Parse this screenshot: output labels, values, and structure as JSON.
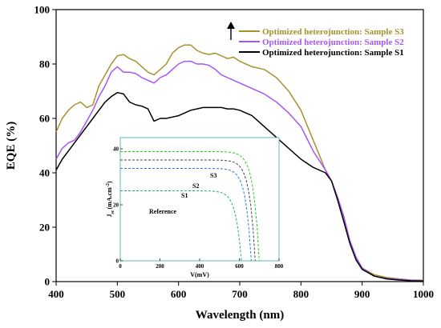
{
  "chart_data": {
    "type": "line",
    "title": "",
    "xlabel": "Wavelength (nm)",
    "ylabel": "EQE (%)",
    "xlim": [
      400,
      1000
    ],
    "ylim": [
      0,
      100
    ],
    "xticks": [
      400,
      500,
      600,
      700,
      800,
      900,
      1000
    ],
    "yticks": [
      0,
      20,
      40,
      60,
      80,
      100
    ],
    "grid": false,
    "legend_position": "top-right",
    "series": [
      {
        "name": "Optimized heterojunction: Sample S3",
        "color": "#a6922b",
        "x": [
          400,
          410,
          420,
          430,
          440,
          450,
          460,
          470,
          480,
          490,
          500,
          510,
          520,
          530,
          540,
          550,
          560,
          570,
          580,
          590,
          600,
          610,
          620,
          630,
          640,
          650,
          660,
          670,
          680,
          690,
          700,
          720,
          740,
          760,
          780,
          800,
          820,
          840,
          850,
          860,
          870,
          880,
          890,
          900,
          920,
          940,
          960,
          980,
          1000
        ],
        "y": [
          55,
          60,
          63,
          65,
          66,
          64,
          65,
          72,
          76,
          80,
          83,
          83.5,
          82,
          81,
          79,
          77,
          76,
          78,
          80,
          84,
          86,
          87,
          87,
          85,
          84,
          83.5,
          84,
          83,
          82,
          82.5,
          81,
          79,
          78,
          75,
          70,
          63,
          52,
          41,
          37,
          30,
          23,
          15,
          9,
          5,
          2.5,
          1.5,
          1,
          0.6,
          0.5
        ]
      },
      {
        "name": "Optimized heterojunction: Sample S2",
        "color": "#a855f7",
        "x": [
          400,
          410,
          420,
          430,
          440,
          450,
          460,
          470,
          480,
          490,
          500,
          510,
          520,
          530,
          540,
          550,
          560,
          570,
          580,
          590,
          600,
          610,
          620,
          630,
          640,
          650,
          660,
          670,
          680,
          690,
          700,
          720,
          740,
          760,
          780,
          800,
          820,
          840,
          850,
          860,
          870,
          880,
          890,
          900,
          920,
          940,
          960,
          980,
          1000
        ],
        "y": [
          45,
          49,
          51,
          52,
          55,
          59,
          63,
          68,
          72,
          77,
          79,
          77,
          77,
          76.5,
          75,
          74,
          73,
          75,
          76,
          78,
          80,
          81,
          81,
          80,
          80,
          79.5,
          78,
          76,
          75,
          74,
          73,
          71,
          69,
          66,
          62,
          57,
          48,
          41,
          37,
          31,
          24,
          15,
          9,
          5,
          2,
          1.2,
          0.8,
          0.5,
          0.3
        ]
      },
      {
        "name": "Optimized heterojunction: Sample S1",
        "color": "#000000",
        "x": [
          400,
          410,
          420,
          430,
          440,
          450,
          460,
          470,
          480,
          490,
          500,
          510,
          520,
          530,
          540,
          550,
          560,
          570,
          580,
          590,
          600,
          610,
          620,
          630,
          640,
          650,
          660,
          670,
          680,
          690,
          700,
          720,
          740,
          760,
          780,
          800,
          820,
          840,
          850,
          860,
          870,
          880,
          890,
          900,
          920,
          940,
          960,
          980,
          1000
        ],
        "y": [
          41,
          45,
          48,
          51,
          54,
          57,
          60,
          63,
          66,
          68,
          69.5,
          69,
          66,
          65,
          64.5,
          63.5,
          59,
          60,
          60,
          60.5,
          61,
          62,
          63,
          63.5,
          64,
          64,
          64,
          64,
          63.5,
          63.5,
          63,
          61,
          57,
          53,
          49,
          45,
          42,
          40,
          37,
          30,
          22,
          14,
          8,
          4.5,
          2,
          1,
          0.6,
          0.3,
          0.2
        ]
      }
    ],
    "inset": {
      "type": "line",
      "xlabel": "V(mV)",
      "ylabel": "J_sc (mA.cm⁻²)",
      "ylabel_main": "J",
      "ylabel_sub": "sc",
      "ylabel_rest": "(mA.cm",
      "ylabel_sup": "-2",
      "ylabel_close": ")",
      "xlim": [
        0,
        800
      ],
      "ylim": [
        0,
        44
      ],
      "xticks": [
        0,
        200,
        400,
        600,
        800
      ],
      "yticks": [
        0,
        20,
        40
      ],
      "series": [
        {
          "name": "S3",
          "color": "#22cc22",
          "jsc": 39,
          "voc": 700,
          "n": 24
        },
        {
          "name": "S2",
          "color": "#444444",
          "jsc": 36,
          "voc": 680,
          "n": 24
        },
        {
          "name": "S1",
          "color": "#3377dd",
          "jsc": 33,
          "voc": 660,
          "n": 24
        },
        {
          "name": "Reference",
          "color": "#22aa88",
          "jsc": 25,
          "voc": 610,
          "n": 22
        }
      ]
    }
  }
}
